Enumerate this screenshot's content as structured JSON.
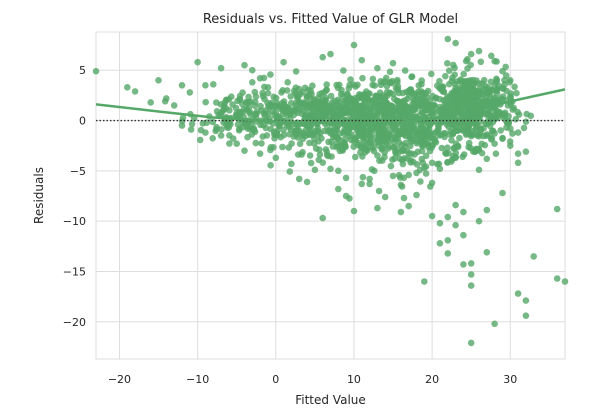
{
  "chart_data": {
    "type": "scatter",
    "title": "Residuals vs. Fitted Value of GLR Model",
    "xlabel": "Fitted Value",
    "ylabel": "Residuals",
    "xlim": [
      -23,
      37
    ],
    "ylim": [
      -23.7,
      8.8
    ],
    "x_ticks": [
      -20,
      -10,
      0,
      10,
      20,
      30
    ],
    "y_ticks": [
      5,
      0,
      -5,
      -10,
      -15,
      -20
    ],
    "grid": true,
    "background": "#ffffff",
    "grid_color": "#dddddd",
    "point_color": "#55a868",
    "reference_line": {
      "y": 0,
      "style": "dotted",
      "color": "#333333"
    },
    "lowess_fit": {
      "color": "#55a868",
      "x": [
        -23,
        -15,
        -8,
        0,
        5,
        10,
        15,
        20,
        25,
        30,
        37
      ],
      "y": [
        1.6,
        0.9,
        0.3,
        -0.1,
        -0.2,
        -0.3,
        -0.2,
        0.2,
        0.9,
        1.9,
        3.1
      ]
    },
    "points_described": {
      "outlier_points": [
        [
          -23,
          4.9
        ],
        [
          -19,
          3.3
        ],
        [
          -18,
          2.9
        ],
        [
          -16,
          1.8
        ],
        [
          -15,
          4.0
        ],
        [
          -14,
          2.2
        ],
        [
          -13,
          1.5
        ],
        [
          -12,
          3.5
        ],
        [
          -12,
          -0.5
        ],
        [
          -11,
          2.8
        ],
        [
          -10,
          5.8
        ],
        [
          -9,
          3.5
        ],
        [
          -8,
          3.6
        ],
        [
          -7,
          5.2
        ],
        [
          -4,
          5.5
        ],
        [
          -3,
          3.8
        ],
        [
          -2,
          4.2
        ],
        [
          3,
          -5.8
        ],
        [
          4,
          -6.1
        ],
        [
          6,
          -9.7
        ],
        [
          8,
          -6.8
        ],
        [
          9,
          -7.5
        ],
        [
          10,
          -9.0
        ],
        [
          11,
          -6.3
        ],
        [
          12,
          -5.8
        ],
        [
          13,
          -8.7
        ],
        [
          14,
          -7.6
        ],
        [
          16,
          -9.1
        ],
        [
          16,
          -6.4
        ],
        [
          17,
          -8.5
        ],
        [
          18,
          -7.4
        ],
        [
          19,
          -16.0
        ],
        [
          20,
          -6.2
        ],
        [
          20,
          -9.5
        ],
        [
          21,
          -10.2
        ],
        [
          21,
          -12.2
        ],
        [
          22,
          -11.9
        ],
        [
          22,
          -9.6
        ],
        [
          22,
          -13.2
        ],
        [
          23,
          -8.4
        ],
        [
          23,
          -10.4
        ],
        [
          24,
          -9.1
        ],
        [
          24,
          -11.4
        ],
        [
          24,
          -14.3
        ],
        [
          25,
          -15.3
        ],
        [
          25,
          -14.2
        ],
        [
          25,
          -16.4
        ],
        [
          25,
          -22.1
        ],
        [
          26,
          -10.0
        ],
        [
          27,
          -8.9
        ],
        [
          27,
          -13.1
        ],
        [
          28,
          -20.2
        ],
        [
          31,
          -17.2
        ],
        [
          32,
          -19.4
        ],
        [
          32,
          -17.9
        ],
        [
          33,
          -13.5
        ],
        [
          36,
          -15.7
        ],
        [
          36,
          -8.8
        ],
        [
          37,
          -16.0
        ],
        [
          29,
          -7.2
        ],
        [
          31,
          -4.2
        ],
        [
          31,
          -3.3
        ],
        [
          32,
          -3.1
        ],
        [
          30,
          -2.5
        ],
        [
          31,
          -1.2
        ],
        [
          22,
          8.1
        ],
        [
          10,
          7.5
        ],
        [
          7,
          6.6
        ],
        [
          6,
          6.3
        ],
        [
          23,
          7.7
        ],
        [
          25,
          6.6
        ],
        [
          26,
          6.9
        ],
        [
          28,
          5.9
        ],
        [
          29,
          4.9
        ],
        [
          30,
          4.0
        ],
        [
          30,
          2.4
        ],
        [
          28,
          3.5
        ],
        [
          15,
          5.7
        ],
        [
          13,
          5.2
        ],
        [
          11,
          6.0
        ],
        [
          1,
          5.8
        ],
        [
          -3,
          5.0
        ],
        [
          -1,
          3.3
        ],
        [
          -6,
          2.1
        ],
        [
          -5,
          -2.3
        ],
        [
          -7,
          -1.5
        ],
        [
          -9,
          -1.2
        ],
        [
          -4,
          -3.0
        ],
        [
          -2,
          -3.3
        ],
        [
          0,
          -3.7
        ],
        [
          2,
          -4.3
        ],
        [
          5,
          -4.9
        ],
        [
          7,
          -4.8
        ],
        [
          8,
          -5.0
        ],
        [
          9,
          -5.7
        ],
        [
          12,
          -6.3
        ],
        [
          15,
          -5.5
        ],
        [
          17,
          -5.4
        ],
        [
          18,
          -5.2
        ],
        [
          19,
          -4.7
        ],
        [
          20,
          -4.2
        ],
        [
          21,
          -4.8
        ],
        [
          23,
          -3.7
        ],
        [
          26,
          -4.9
        ],
        [
          27,
          -3.8
        ],
        [
          28,
          -2.3
        ],
        [
          29,
          -1.8
        ],
        [
          30,
          -0.8
        ]
      ],
      "dense_clusters": [
        {
          "cx": 5,
          "cy": 0.3,
          "sx": 5.5,
          "sy": 1.4,
          "n": 420
        },
        {
          "cx": 12,
          "cy": -0.5,
          "sx": 4.5,
          "sy": 1.8,
          "n": 380
        },
        {
          "cx": 18,
          "cy": -0.8,
          "sx": 3.5,
          "sy": 2.2,
          "n": 260
        },
        {
          "cx": 25.5,
          "cy": 1.2,
          "sx": 2.4,
          "sy": 1.8,
          "n": 420
        },
        {
          "cx": -6,
          "cy": 0.3,
          "sx": 2.5,
          "sy": 1.2,
          "n": 80
        },
        {
          "cx": 14,
          "cy": 2.0,
          "sx": 6,
          "sy": 1.4,
          "n": 160
        }
      ]
    }
  }
}
